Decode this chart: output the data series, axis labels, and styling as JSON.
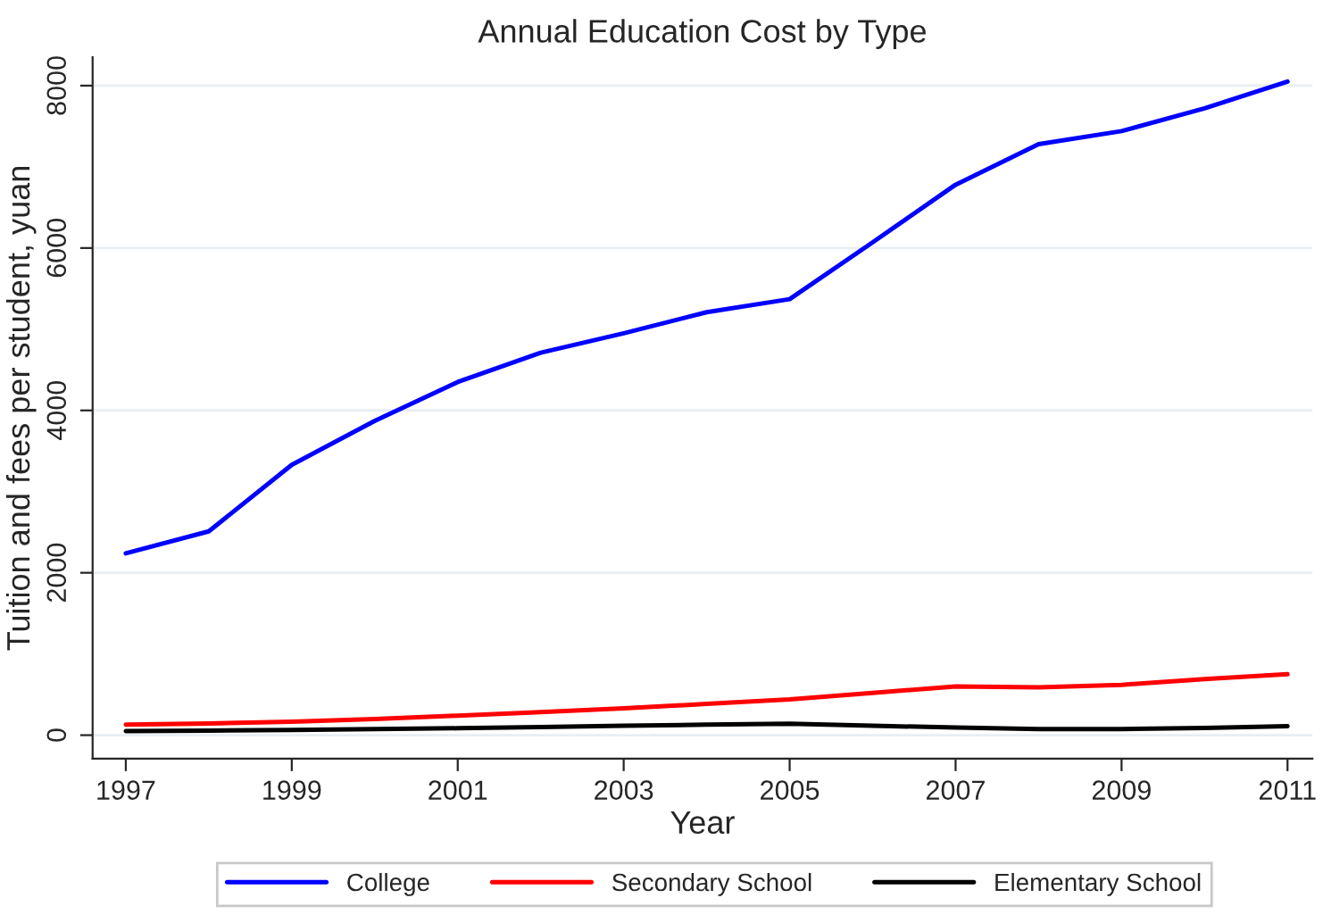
{
  "chart_data": {
    "type": "line",
    "title": "Annual Education Cost by Type",
    "xlabel": "Year",
    "ylabel": "Tuition and fees per student, yuan",
    "x": [
      1997,
      1998,
      1999,
      2000,
      2001,
      2002,
      2003,
      2004,
      2005,
      2006,
      2007,
      2008,
      2009,
      2010,
      2011
    ],
    "series": [
      {
        "name": "College",
        "color": "#0000ff",
        "values": [
          2240,
          2510,
          3330,
          3870,
          4350,
          4710,
          4950,
          5210,
          5370,
          6070,
          6780,
          7280,
          7440,
          7720,
          8050
        ]
      },
      {
        "name": "Secondary School",
        "color": "#ff0000",
        "values": [
          130,
          145,
          165,
          200,
          240,
          285,
          330,
          385,
          440,
          520,
          600,
          590,
          620,
          690,
          750
        ]
      },
      {
        "name": "Elementary School",
        "color": "#000000",
        "values": [
          50,
          55,
          65,
          75,
          85,
          100,
          115,
          130,
          140,
          115,
          95,
          75,
          75,
          90,
          110
        ]
      }
    ],
    "xlim": [
      1996.6,
      2011.3
    ],
    "xticks": [
      1997,
      1999,
      2001,
      2003,
      2005,
      2007,
      2009,
      2011
    ],
    "ylim": [
      -290,
      8350
    ],
    "yticks": [
      0,
      2000,
      4000,
      6000,
      8000
    ],
    "grid": "y",
    "legend": "bottom",
    "marker": "none",
    "line_style": "solid"
  }
}
